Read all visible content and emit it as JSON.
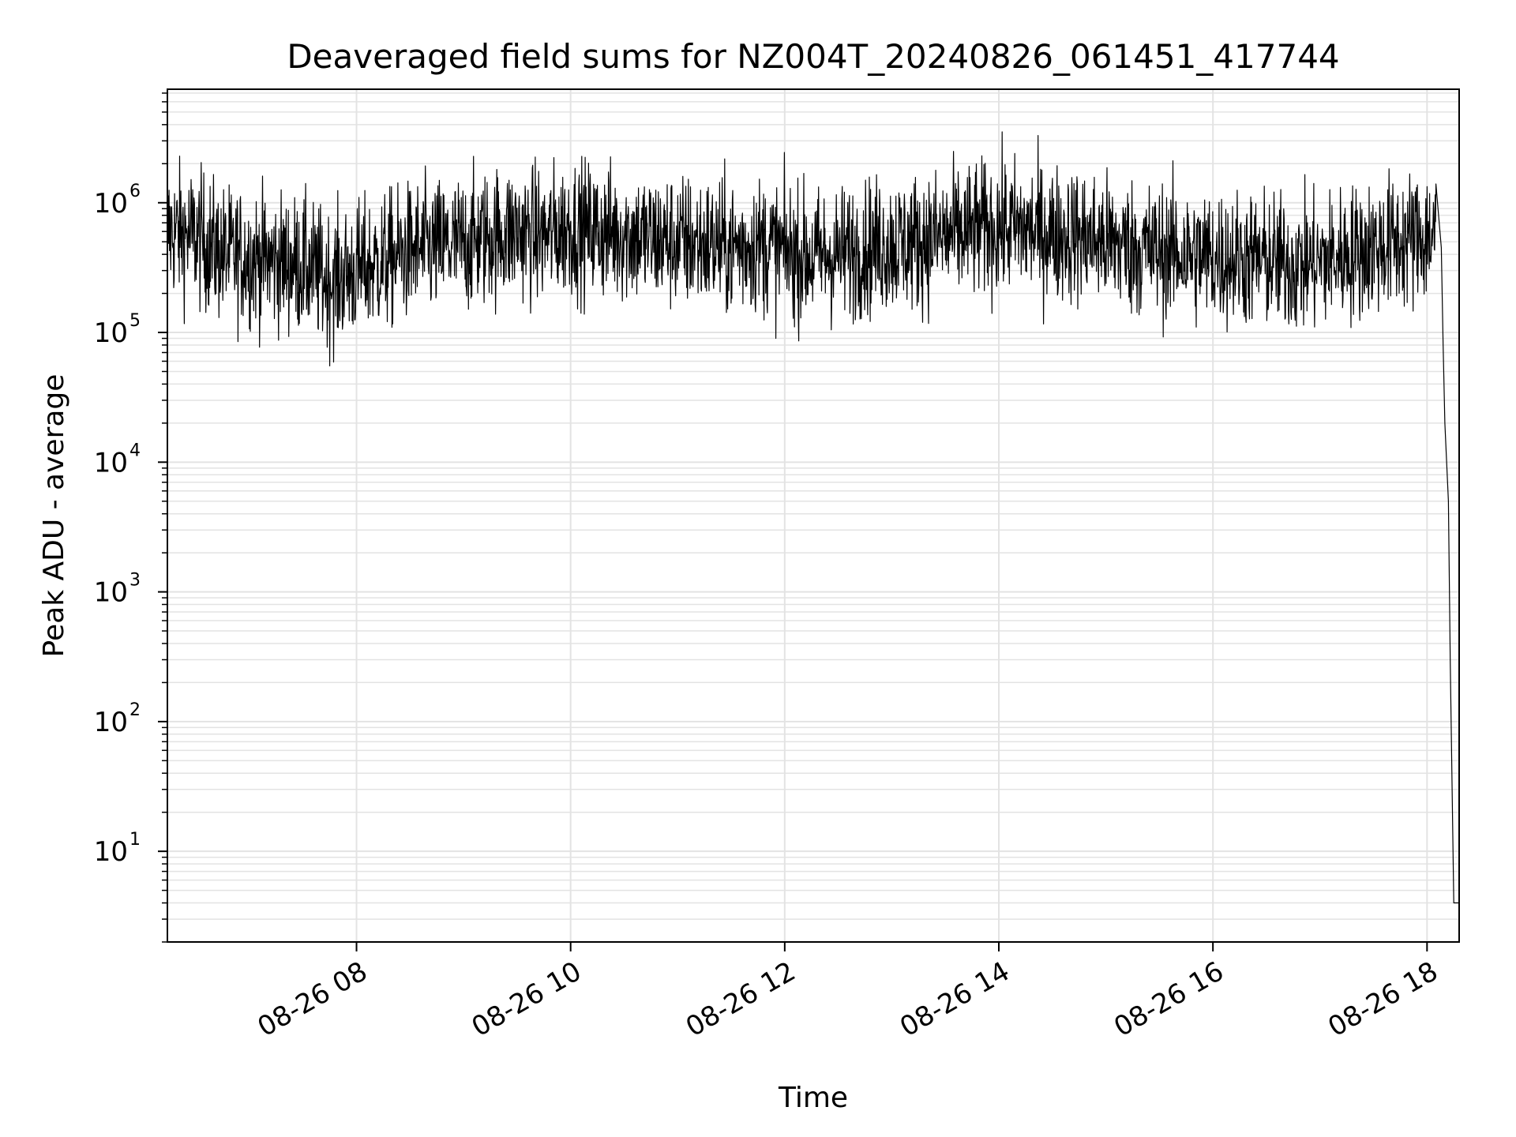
{
  "chart_data": {
    "type": "line",
    "title": "Deaveraged field sums for NZ004T_20240826_061451_417744",
    "xlabel": "Time",
    "ylabel": "Peak ADU - average",
    "yscale": "log",
    "ylim": [
      2,
      7500000
    ],
    "xlim": [
      "2024-08-26 06:14",
      "2024-08-26 18:18"
    ],
    "grid": true,
    "line_color": "#000000",
    "grid_color": "#e3e3e3",
    "x_ticks": [
      {
        "value": "2024-08-26 08:00",
        "label": "08-26 08"
      },
      {
        "value": "2024-08-26 10:00",
        "label": "08-26 10"
      },
      {
        "value": "2024-08-26 12:00",
        "label": "08-26 12"
      },
      {
        "value": "2024-08-26 14:00",
        "label": "08-26 14"
      },
      {
        "value": "2024-08-26 16:00",
        "label": "08-26 16"
      },
      {
        "value": "2024-08-26 18:00",
        "label": "08-26 18"
      }
    ],
    "y_ticks": [
      {
        "value": 10,
        "base": "10",
        "exp": "1"
      },
      {
        "value": 100,
        "base": "10",
        "exp": "2"
      },
      {
        "value": 1000,
        "base": "10",
        "exp": "3"
      },
      {
        "value": 10000,
        "base": "10",
        "exp": "4"
      },
      {
        "value": 100000,
        "base": "10",
        "exp": "5"
      },
      {
        "value": 1000000,
        "base": "10",
        "exp": "6"
      }
    ],
    "series": [
      {
        "x": [
          "2024-08-26 06:14",
          "2024-08-26 06:30",
          "2024-08-26 06:45",
          "2024-08-26 07:00",
          "2024-08-26 07:15",
          "2024-08-26 07:30",
          "2024-08-26 07:45",
          "2024-08-26 08:00",
          "2024-08-26 08:15",
          "2024-08-26 08:30",
          "2024-08-26 08:45",
          "2024-08-26 09:00",
          "2024-08-26 09:15",
          "2024-08-26 09:30",
          "2024-08-26 09:45",
          "2024-08-26 10:00",
          "2024-08-26 10:15",
          "2024-08-26 10:30",
          "2024-08-26 10:45",
          "2024-08-26 11:00",
          "2024-08-26 11:15",
          "2024-08-26 11:30",
          "2024-08-26 11:45",
          "2024-08-26 12:00",
          "2024-08-26 12:15",
          "2024-08-26 12:30",
          "2024-08-26 12:45",
          "2024-08-26 13:00",
          "2024-08-26 13:15",
          "2024-08-26 13:30",
          "2024-08-26 13:45",
          "2024-08-26 14:00",
          "2024-08-26 14:15",
          "2024-08-26 14:30",
          "2024-08-26 14:45",
          "2024-08-26 15:00",
          "2024-08-26 15:15",
          "2024-08-26 15:30",
          "2024-08-26 15:45",
          "2024-08-26 16:00",
          "2024-08-26 16:15",
          "2024-08-26 16:30",
          "2024-08-26 16:45",
          "2024-08-26 17:00",
          "2024-08-26 17:15",
          "2024-08-26 17:30",
          "2024-08-26 17:45",
          "2024-08-26 18:00",
          "2024-08-26 18:05",
          "2024-08-26 18:08",
          "2024-08-26 18:09",
          "2024-08-26 18:10",
          "2024-08-26 18:12",
          "2024-08-26 18:13",
          "2024-08-26 18:15",
          "2024-08-26 18:18"
        ],
        "y": [
          600000,
          550000,
          400000,
          380000,
          350000,
          330000,
          250000,
          300000,
          350000,
          420000,
          450000,
          480000,
          550000,
          600000,
          550000,
          650000,
          600000,
          580000,
          520000,
          500000,
          480000,
          450000,
          480000,
          420000,
          380000,
          400000,
          450000,
          480000,
          500000,
          550000,
          600000,
          650000,
          620000,
          580000,
          550000,
          500000,
          450000,
          420000,
          400000,
          380000,
          370000,
          360000,
          330000,
          350000,
          400000,
          450000,
          500000,
          550000,
          600000,
          450000,
          80000,
          20000,
          5000,
          300,
          4,
          4
        ],
        "noise_range": [
          45000,
          3900000
        ]
      }
    ]
  }
}
